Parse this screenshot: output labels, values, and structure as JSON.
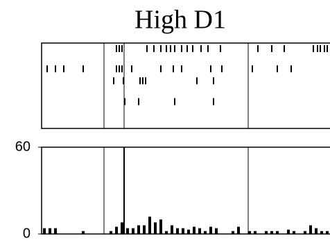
{
  "chart_data": [
    {
      "type": "raster",
      "title": "High D1",
      "xlim": [
        0,
        104
      ],
      "event_lines": [
        22.5,
        29.75,
        74.5
      ],
      "trials": [
        [
          27,
          28,
          29,
          38,
          40.5,
          43,
          45,
          46.5,
          48,
          50.5,
          52.5,
          54.5,
          57.5,
          60,
          64.5,
          78,
          83,
          87.5,
          98,
          99.5,
          100.5,
          102,
          103
        ],
        [
          2,
          5,
          8,
          15,
          27,
          28,
          29,
          32.5,
          43,
          47.5,
          50.5,
          61,
          65,
          76,
          85,
          90
        ],
        [
          26,
          29.5,
          35.5,
          36.5,
          37.5,
          56,
          62
        ],
        [
          30,
          35,
          48,
          62
        ]
      ],
      "color": "#000000"
    },
    {
      "type": "histogram",
      "xlim": [
        0,
        104
      ],
      "ylim": [
        0,
        60
      ],
      "yticks": [
        0,
        60
      ],
      "event_lines": [
        22.5,
        29.75,
        74.5
      ],
      "bins": [
        0,
        2,
        4,
        6,
        8,
        10,
        12,
        14,
        16,
        18,
        20,
        22,
        24,
        26,
        28,
        30,
        32,
        34,
        36,
        38,
        40,
        42,
        44,
        46,
        48,
        50,
        52,
        54,
        56,
        58,
        60,
        62,
        64,
        66,
        68,
        70,
        72,
        74,
        76,
        78,
        80,
        82,
        84,
        86,
        88,
        90,
        92,
        94,
        96,
        98,
        100,
        102,
        104
      ],
      "counts": [
        4,
        4,
        4,
        0,
        0,
        0,
        0,
        2,
        0,
        0,
        0,
        0,
        2,
        5,
        8,
        4,
        4,
        6,
        6,
        12,
        8,
        10,
        2,
        6,
        4,
        4,
        3,
        5,
        4,
        2,
        5,
        4,
        0,
        0,
        2,
        5,
        0,
        2,
        2,
        0,
        2,
        2,
        2,
        0,
        3,
        2,
        0,
        2,
        6,
        4,
        2,
        2
      ],
      "color": "#000000"
    }
  ]
}
